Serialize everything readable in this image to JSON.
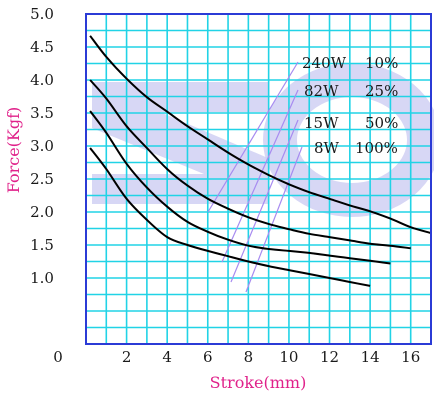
{
  "chart_data": {
    "type": "line",
    "title": "",
    "xlabel": "Stroke(mm)",
    "ylabel": "Force(Kgf)",
    "xlim": [
      0,
      17
    ],
    "ylim": [
      0,
      5.0
    ],
    "x_ticks": [
      "0",
      "2",
      "4",
      "6",
      "8",
      "10",
      "12",
      "14",
      "16"
    ],
    "y_ticks": [
      "1.0",
      "1.5",
      "2.0",
      "2.5",
      "3.0",
      "3.5",
      "4.0",
      "4.5",
      "5.0"
    ],
    "grid": true,
    "colors": {
      "grid": "#21d3e6",
      "frame": "#2b3bd6",
      "curves": "#000000",
      "leader_lines": "#a78bf0",
      "axis_titles": "#e0218a",
      "watermark": "#c9c9f2"
    },
    "series": [
      {
        "name": "240W 10%",
        "x": [
          0.2,
          1,
          2,
          3,
          4,
          5,
          6,
          7,
          8,
          9,
          10,
          11,
          12,
          13,
          14,
          15,
          16,
          17
        ],
        "y": [
          4.67,
          4.35,
          4.02,
          3.74,
          3.52,
          3.3,
          3.1,
          2.9,
          2.72,
          2.56,
          2.42,
          2.3,
          2.2,
          2.1,
          2.01,
          1.9,
          1.77,
          1.68
        ]
      },
      {
        "name": "82W 25%",
        "x": [
          0.2,
          1,
          2,
          3,
          4,
          5,
          6,
          7,
          8,
          9,
          10,
          11,
          12,
          13,
          14,
          15,
          16
        ],
        "y": [
          4.0,
          3.72,
          3.3,
          2.97,
          2.65,
          2.4,
          2.2,
          2.05,
          1.92,
          1.82,
          1.74,
          1.67,
          1.62,
          1.57,
          1.52,
          1.49,
          1.45
        ]
      },
      {
        "name": "15W 50%",
        "x": [
          0.2,
          1,
          2,
          3,
          4,
          5,
          6,
          7,
          8,
          9,
          10,
          11,
          12,
          13,
          14,
          15
        ],
        "y": [
          3.53,
          3.2,
          2.73,
          2.37,
          2.08,
          1.85,
          1.7,
          1.58,
          1.49,
          1.44,
          1.41,
          1.38,
          1.34,
          1.3,
          1.26,
          1.22
        ]
      },
      {
        "name": "8W 100%",
        "x": [
          0.2,
          1,
          2,
          3,
          4,
          5,
          6,
          7,
          8,
          9,
          10,
          11,
          12,
          13,
          14
        ],
        "y": [
          2.97,
          2.65,
          2.2,
          1.88,
          1.62,
          1.5,
          1.41,
          1.33,
          1.25,
          1.18,
          1.12,
          1.06,
          1.0,
          0.94,
          0.88
        ]
      }
    ],
    "annotations": [
      {
        "power": "240W",
        "duty": "10%"
      },
      {
        "power": "82W",
        "duty": "25%"
      },
      {
        "power": "15W",
        "duty": "50%"
      },
      {
        "power": "8W",
        "duty": "100%"
      }
    ]
  }
}
